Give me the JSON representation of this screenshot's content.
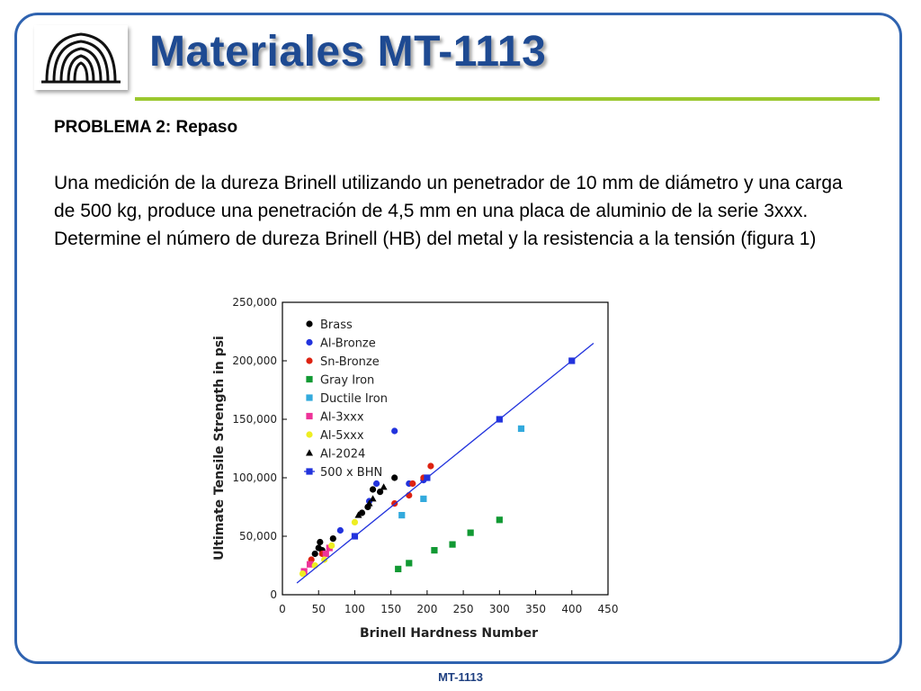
{
  "header": {
    "title": "Materiales MT-1113"
  },
  "content": {
    "subtitle": "PROBLEMA 2: Repaso",
    "paragraph": "Una medición de la dureza Brinell utilizando un penetrador de 10 mm de diámetro y una carga de 500 kg, produce una penetración de 4,5 mm en una placa de aluminio de la serie 3xxx. Determine el número de dureza Brinell (HB) del metal y la resistencia a la tensión (figura 1)"
  },
  "footer": {
    "text": "MT-1113"
  },
  "logo": {
    "icon": "university-logo-icon"
  },
  "chart_data": {
    "type": "scatter",
    "xlabel": "Brinell Hardness Number",
    "ylabel": "Ultimate Tensile Strength in psi",
    "xlim": [
      0,
      450
    ],
    "ylim": [
      0,
      250000
    ],
    "x_ticks": [
      "0",
      "50",
      "100",
      "150",
      "200",
      "250",
      "300",
      "350",
      "400",
      "450"
    ],
    "y_ticks": [
      "0",
      "50,000",
      "100,000",
      "150,000",
      "200,000",
      "250,000"
    ],
    "x_tick_values": [
      0,
      50,
      100,
      150,
      200,
      250,
      300,
      350,
      400,
      450
    ],
    "y_tick_values": [
      0,
      50000,
      100000,
      150000,
      200000,
      250000
    ],
    "legend_position": "top-left",
    "grid": false,
    "series": [
      {
        "name": "Brass",
        "marker": "circle",
        "color": "#000000",
        "points": [
          [
            45,
            35000
          ],
          [
            50,
            40000
          ],
          [
            52,
            45000
          ],
          [
            55,
            38000
          ],
          [
            70,
            48000
          ],
          [
            110,
            70000
          ],
          [
            118,
            75000
          ],
          [
            125,
            90000
          ],
          [
            135,
            88000
          ],
          [
            155,
            100000
          ]
        ]
      },
      {
        "name": "Al-Bronze",
        "marker": "circle",
        "color": "#2233dd",
        "points": [
          [
            80,
            55000
          ],
          [
            120,
            80000
          ],
          [
            130,
            95000
          ],
          [
            155,
            140000
          ],
          [
            175,
            95000
          ],
          [
            195,
            98000
          ]
        ]
      },
      {
        "name": "Sn-Bronze",
        "marker": "circle",
        "color": "#dd2211",
        "points": [
          [
            40,
            30000
          ],
          [
            55,
            35000
          ],
          [
            155,
            78000
          ],
          [
            175,
            85000
          ],
          [
            180,
            95000
          ],
          [
            195,
            100000
          ],
          [
            205,
            110000
          ]
        ]
      },
      {
        "name": "Gray Iron",
        "marker": "square",
        "color": "#119933",
        "points": [
          [
            160,
            22000
          ],
          [
            175,
            27000
          ],
          [
            210,
            38000
          ],
          [
            235,
            43000
          ],
          [
            260,
            53000
          ],
          [
            300,
            64000
          ]
        ]
      },
      {
        "name": "Ductile Iron",
        "marker": "square",
        "color": "#33aadd",
        "points": [
          [
            165,
            68000
          ],
          [
            195,
            82000
          ],
          [
            330,
            142000
          ]
        ]
      },
      {
        "name": "Al-3xxx",
        "marker": "square",
        "color": "#ee3399",
        "points": [
          [
            30,
            20000
          ],
          [
            38,
            26000
          ],
          [
            60,
            35000
          ],
          [
            65,
            40000
          ]
        ]
      },
      {
        "name": "Al-5xxx",
        "marker": "circle",
        "color": "#eeee22",
        "points": [
          [
            28,
            18000
          ],
          [
            45,
            25000
          ],
          [
            58,
            30000
          ],
          [
            68,
            42000
          ],
          [
            100,
            62000
          ]
        ]
      },
      {
        "name": "Al-2024",
        "marker": "triangle",
        "color": "#000000",
        "points": [
          [
            120,
            78000
          ],
          [
            125,
            82000
          ],
          [
            140,
            92000
          ],
          [
            105,
            68000
          ]
        ]
      },
      {
        "name": "500 x BHN",
        "marker": "square-line",
        "color": "#2233dd",
        "line": [
          [
            20,
            10000
          ],
          [
            430,
            215000
          ]
        ],
        "points": [
          [
            100,
            50000
          ],
          [
            200,
            100000
          ],
          [
            300,
            150000
          ],
          [
            400,
            200000
          ]
        ]
      }
    ]
  }
}
